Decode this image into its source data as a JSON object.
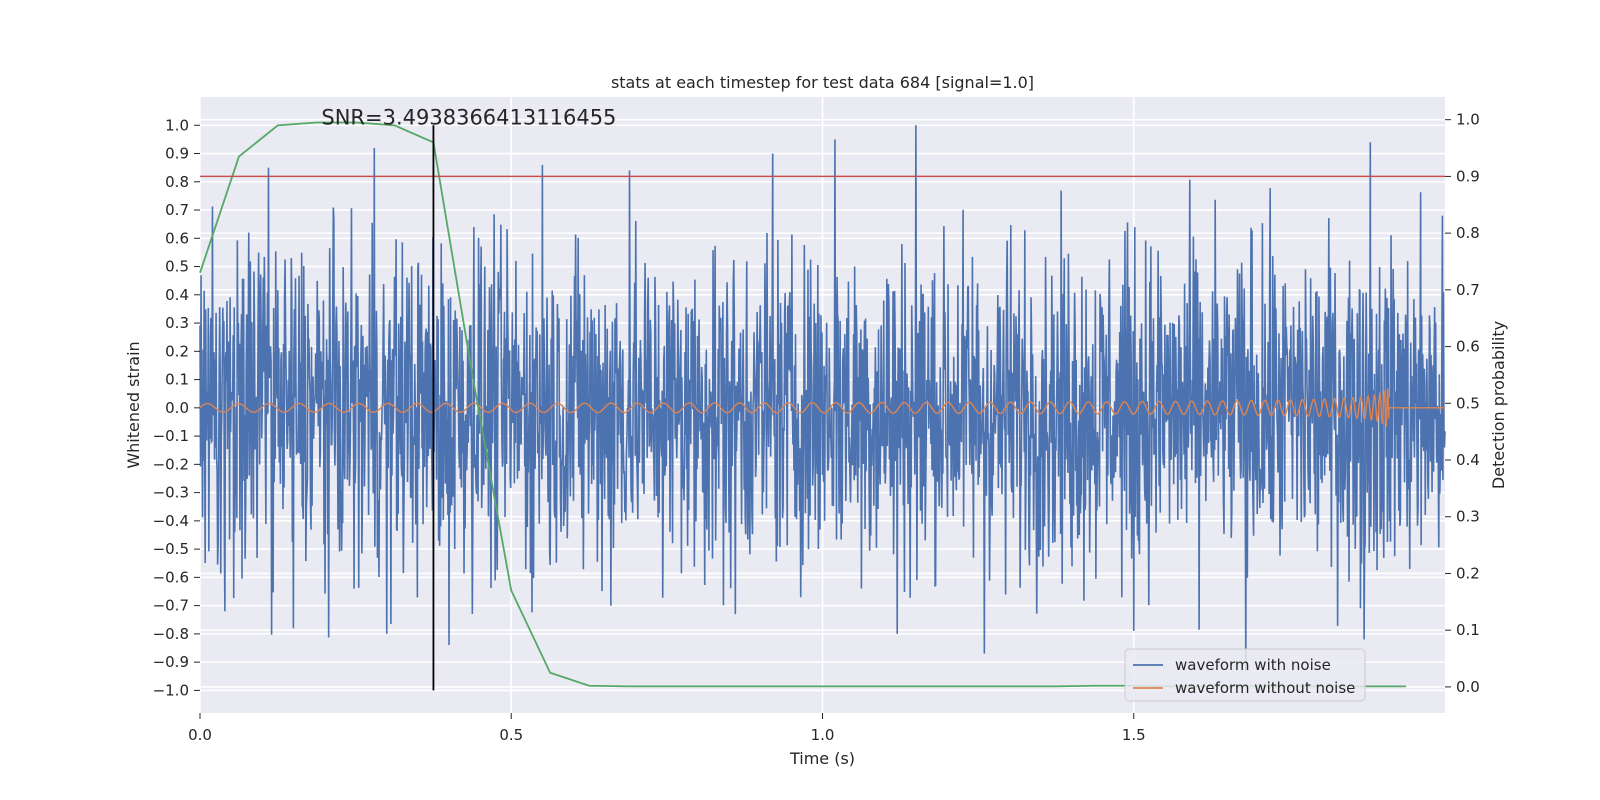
{
  "chart_data": {
    "type": "line",
    "title": "stats at each timestep for test data 684 [signal=1.0]",
    "xlabel": "Time (s)",
    "ylabel_left": "Whitened strain",
    "ylabel_right": "Detection probability",
    "xlim": [
      0.0,
      2.0
    ],
    "ylim_left": [
      -1.08,
      1.1
    ],
    "ylim_right": [
      -0.046,
      1.04
    ],
    "x_ticks": [
      {
        "value": 0.0,
        "label": "0.0"
      },
      {
        "value": 0.5,
        "label": "0.5"
      },
      {
        "value": 1.0,
        "label": "1.0"
      },
      {
        "value": 1.5,
        "label": "1.5"
      }
    ],
    "y_ticks_left": [
      {
        "value": 1.0,
        "label": "1.0"
      },
      {
        "value": 0.9,
        "label": "0.9"
      },
      {
        "value": 0.8,
        "label": "0.8"
      },
      {
        "value": 0.7,
        "label": "0.7"
      },
      {
        "value": 0.6,
        "label": "0.6"
      },
      {
        "value": 0.5,
        "label": "0.5"
      },
      {
        "value": 0.4,
        "label": "0.4"
      },
      {
        "value": 0.3,
        "label": "0.3"
      },
      {
        "value": 0.2,
        "label": "0.2"
      },
      {
        "value": 0.1,
        "label": "0.1"
      },
      {
        "value": 0.0,
        "label": "0.0"
      },
      {
        "value": -0.1,
        "label": "−0.1"
      },
      {
        "value": -0.2,
        "label": "−0.2"
      },
      {
        "value": -0.3,
        "label": "−0.3"
      },
      {
        "value": -0.4,
        "label": "−0.4"
      },
      {
        "value": -0.5,
        "label": "−0.5"
      },
      {
        "value": -0.6,
        "label": "−0.6"
      },
      {
        "value": -0.7,
        "label": "−0.7"
      },
      {
        "value": -0.8,
        "label": "−0.8"
      },
      {
        "value": -0.9,
        "label": "−0.9"
      },
      {
        "value": -1.0,
        "label": "−1.0"
      }
    ],
    "y_ticks_right": [
      {
        "value": 1.0,
        "label": "1.0"
      },
      {
        "value": 0.9,
        "label": "0.9"
      },
      {
        "value": 0.8,
        "label": "0.8"
      },
      {
        "value": 0.7,
        "label": "0.7"
      },
      {
        "value": 0.6,
        "label": "0.6"
      },
      {
        "value": 0.5,
        "label": "0.5"
      },
      {
        "value": 0.4,
        "label": "0.4"
      },
      {
        "value": 0.3,
        "label": "0.3"
      },
      {
        "value": 0.2,
        "label": "0.2"
      },
      {
        "value": 0.1,
        "label": "0.1"
      },
      {
        "value": 0.0,
        "label": "0.0"
      }
    ],
    "grid": true,
    "background_color": "#eaeaf2",
    "series": [
      {
        "name": "waveform with noise",
        "color": "#4c72b0",
        "axis": "left",
        "amplitude": 0.38,
        "peaks": [
          {
            "x": 0.11,
            "y": 0.85
          },
          {
            "x": 0.28,
            "y": 0.92
          },
          {
            "x": 0.44,
            "y": 0.64
          },
          {
            "x": 0.55,
            "y": 0.86
          },
          {
            "x": 0.69,
            "y": 0.84
          },
          {
            "x": 0.92,
            "y": 0.9
          },
          {
            "x": 1.02,
            "y": 0.95
          },
          {
            "x": 1.15,
            "y": 1.0
          },
          {
            "x": 1.88,
            "y": 0.94
          },
          {
            "x": 0.04,
            "y": -0.72
          },
          {
            "x": 0.15,
            "y": -0.78
          },
          {
            "x": 0.3,
            "y": -0.8
          },
          {
            "x": 0.4,
            "y": -0.84
          },
          {
            "x": 0.66,
            "y": -0.7
          },
          {
            "x": 0.86,
            "y": -0.73
          },
          {
            "x": 1.12,
            "y": -0.8
          },
          {
            "x": 1.26,
            "y": -0.87
          },
          {
            "x": 1.5,
            "y": -0.79
          },
          {
            "x": 1.68,
            "y": -0.93
          },
          {
            "x": 1.87,
            "y": -0.82
          }
        ]
      },
      {
        "name": "waveform without noise",
        "color": "#dd8452",
        "axis": "left",
        "chirp": {
          "start_amplitude": 0.015,
          "peak_amplitude": 0.12,
          "merger_time": 1.91,
          "start_frequency": 20,
          "end_frequency": 400
        }
      },
      {
        "name": "detection probability",
        "color": "#55a868",
        "axis": "right",
        "x": [
          0.0,
          0.0625,
          0.125,
          0.1875,
          0.25,
          0.3125,
          0.375,
          0.4375,
          0.5,
          0.5625,
          0.625,
          0.6875,
          0.75,
          0.8125,
          0.875,
          0.9375,
          1.0,
          1.0625,
          1.125,
          1.1875,
          1.25,
          1.3125,
          1.375,
          1.4375,
          1.5,
          1.5625,
          1.625,
          1.6875,
          1.75,
          1.8125,
          1.875,
          1.9375
        ],
        "y": [
          0.73,
          0.935,
          0.99,
          0.995,
          0.995,
          0.99,
          0.96,
          0.55,
          0.17,
          0.025,
          0.002,
          0.001,
          0.001,
          0.001,
          0.001,
          0.001,
          0.001,
          0.001,
          0.001,
          0.001,
          0.001,
          0.001,
          0.001,
          0.002,
          0.002,
          0.001,
          0.001,
          0.001,
          0.001,
          0.001,
          0.001,
          0.001
        ]
      }
    ],
    "threshold_line": {
      "axis": "right",
      "value": 0.9,
      "color": "#c44e52"
    },
    "marker_line": {
      "x": 0.375,
      "y_from": -1.0,
      "y_to": 1.0,
      "color": "#000000"
    },
    "annotation": {
      "text": "SNR=3.4938366413116455",
      "x": 0.195,
      "y": 1.0
    },
    "legend": {
      "placement": "bottom-right",
      "entries": [
        {
          "label": "waveform with noise",
          "color": "#4c72b0"
        },
        {
          "label": "waveform without noise",
          "color": "#dd8452"
        }
      ]
    }
  }
}
